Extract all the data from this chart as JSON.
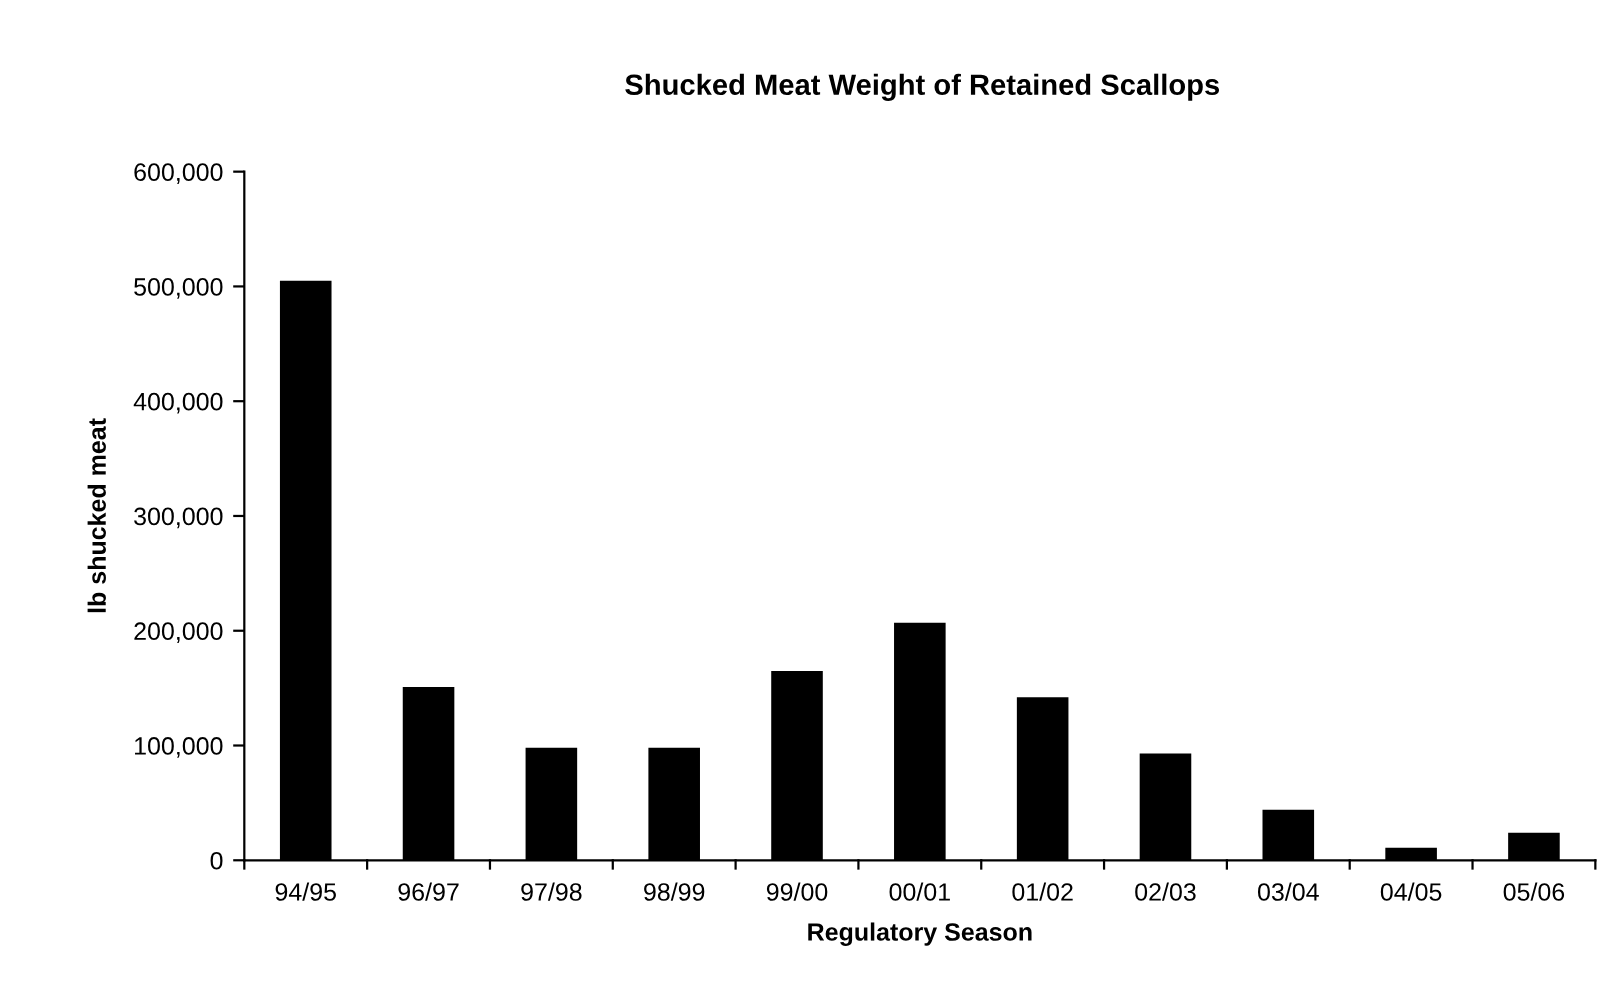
{
  "chart_data": {
    "type": "bar",
    "title": "Shucked Meat Weight of Retained Scallops",
    "xlabel": "Regulatory Season",
    "ylabel": "lb shucked meat",
    "categories": [
      "94/95",
      "96/97",
      "97/98",
      "98/99",
      "99/00",
      "00/01",
      "01/02",
      "02/03",
      "03/04",
      "04/05",
      "05/06"
    ],
    "values": [
      505000,
      151000,
      98000,
      98000,
      165000,
      207000,
      142000,
      93000,
      44000,
      11000,
      24000
    ],
    "color": "#000000",
    "ylim": [
      0,
      600000
    ],
    "yticks": [
      {
        "value": 0,
        "label": "0"
      },
      {
        "value": 100000,
        "label": "100,000"
      },
      {
        "value": 200000,
        "label": "200,000"
      },
      {
        "value": 300000,
        "label": "300,000"
      },
      {
        "value": 400000,
        "label": "400,000"
      },
      {
        "value": 500000,
        "label": "500,000"
      },
      {
        "value": 600000,
        "label": "600,000"
      }
    ],
    "grid": false,
    "legend": false
  }
}
